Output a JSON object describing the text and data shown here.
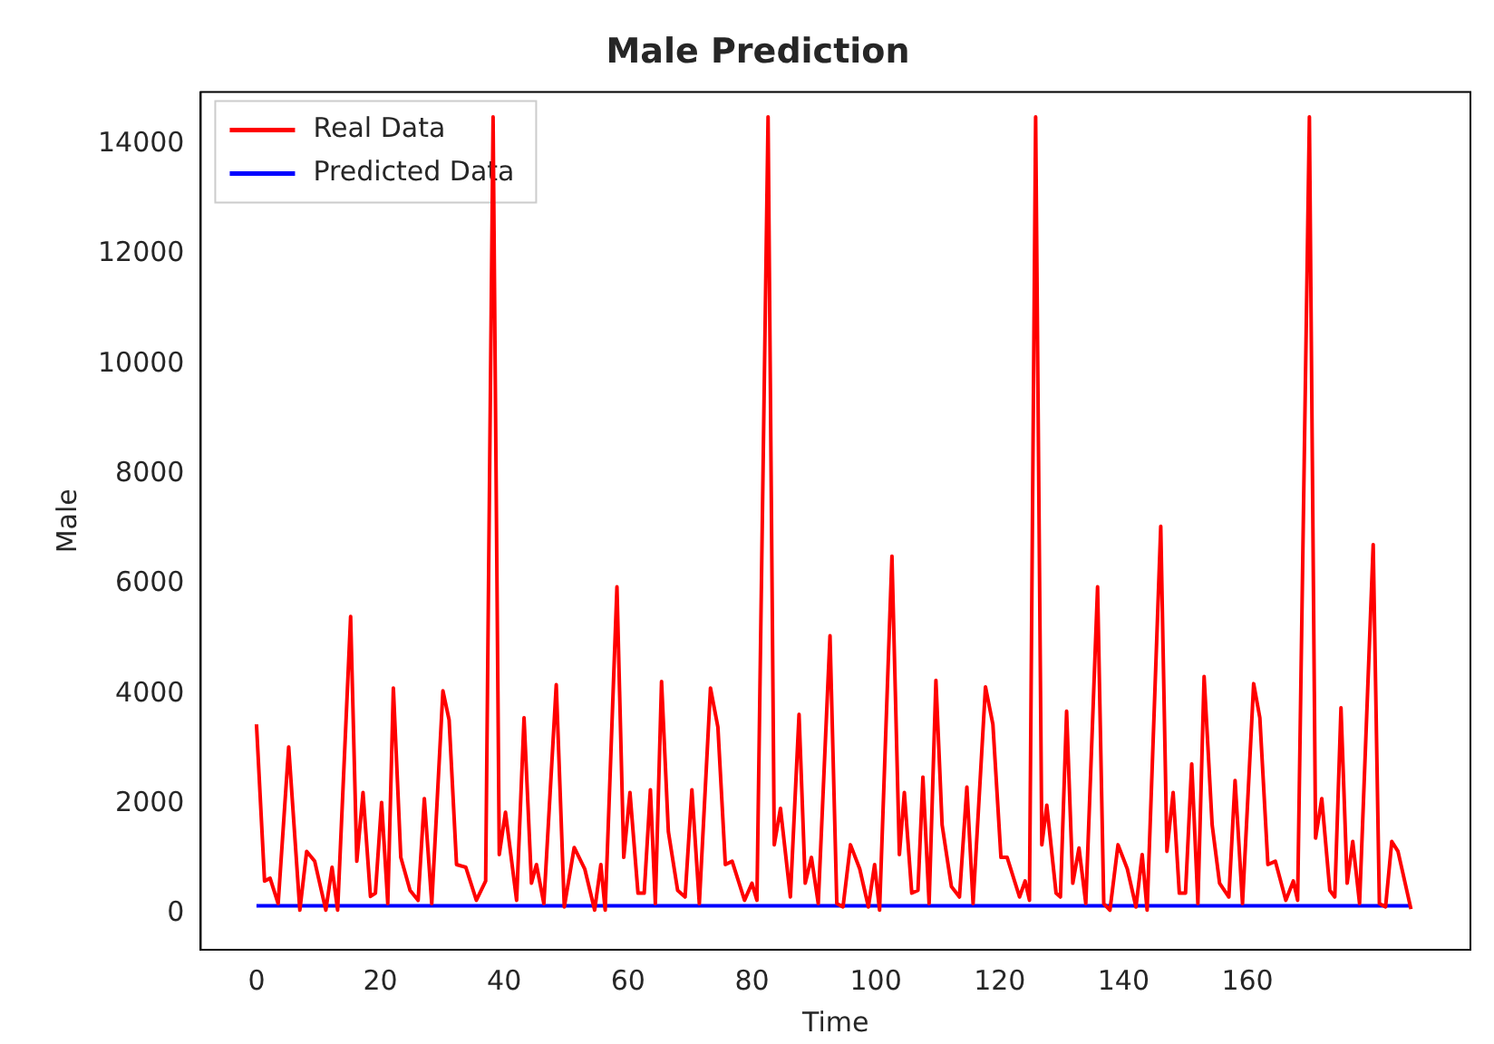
{
  "chart_data": {
    "type": "line",
    "title": "Male Prediction",
    "xlabel": "Time",
    "ylabel": "Male",
    "xlim": [
      -9,
      196
    ],
    "ylim": [
      -650,
      14950
    ],
    "xticks": [
      0,
      20,
      40,
      60,
      80,
      100,
      120,
      140,
      160
    ],
    "yticks": [
      0,
      2000,
      4000,
      6000,
      8000,
      10000,
      12000,
      14000
    ],
    "grid": false,
    "legend": "top left",
    "marker": "none",
    "line_style": "solid",
    "series": [
      {
        "name": "Real Data",
        "color": "#ff0000",
        "x": [
          0,
          1.3,
          2.2,
          3.5,
          5.2,
          7,
          8.1,
          9.4,
          11.2,
          12.2,
          13.1,
          15.2,
          16.2,
          17.2,
          18.4,
          19.2,
          20.2,
          21.2,
          22.1,
          23.3,
          24.8,
          26.1,
          27.1,
          28.3,
          30.1,
          31.1,
          32.3,
          33.8,
          35.5,
          37,
          38.2,
          39.2,
          40.2,
          42,
          43.2,
          44.4,
          45.2,
          46.4,
          48.4,
          49.7,
          51.3,
          53,
          54.6,
          55.6,
          56.3,
          58.2,
          59.3,
          60.3,
          61.6,
          62.6,
          63.6,
          64.4,
          65.4,
          66.5,
          68,
          69.2,
          70.3,
          71.5,
          73.3,
          74.5,
          75.7,
          76.8,
          78.8,
          80,
          80.8,
          82.6,
          83.6,
          84.6,
          86.2,
          87.6,
          88.6,
          89.6,
          90.7,
          92.6,
          93.7,
          94.7,
          95.9,
          97.4,
          98.8,
          99.8,
          100.6,
          102.6,
          103.8,
          104.6,
          105.8,
          106.8,
          107.6,
          108.6,
          109.7,
          110.7,
          112.2,
          113.5,
          114.7,
          115.7,
          117.7,
          118.9,
          120.2,
          121.2,
          123.2,
          124.1,
          124.8,
          125.8,
          126.8,
          127.6,
          129.1,
          129.8,
          130.8,
          131.8,
          132.8,
          133.9,
          135.8,
          136.8,
          137.8,
          139.1,
          140.6,
          142,
          143,
          143.8,
          146,
          147,
          148,
          149,
          150,
          151,
          152,
          153,
          154.3,
          155.5,
          157,
          158,
          159.2,
          161,
          162,
          163.3,
          164.5,
          166.2,
          167.4,
          168.1,
          170,
          171,
          172,
          173.3,
          174.1,
          175.1,
          176.1,
          177,
          178.1,
          180.3,
          181.3,
          182.3,
          183.3,
          184.3,
          186.4
        ],
        "values": [
          3450,
          600,
          650,
          190,
          3040,
          70,
          1140,
          960,
          70,
          850,
          70,
          5410,
          960,
          2210,
          320,
          380,
          2030,
          190,
          4110,
          1030,
          430,
          250,
          2100,
          190,
          4060,
          3530,
          900,
          850,
          250,
          600,
          14500,
          1080,
          1850,
          250,
          3570,
          560,
          900,
          190,
          4170,
          130,
          1210,
          820,
          70,
          900,
          70,
          5950,
          1030,
          2210,
          380,
          380,
          2260,
          190,
          4230,
          1500,
          430,
          310,
          2260,
          190,
          4110,
          3400,
          900,
          960,
          250,
          560,
          250,
          14500,
          1260,
          1920,
          310,
          3630,
          560,
          1030,
          190,
          5060,
          190,
          130,
          1260,
          820,
          130,
          900,
          70,
          6510,
          1080,
          2210,
          380,
          430,
          2490,
          190,
          4250,
          1620,
          500,
          310,
          2310,
          190,
          4130,
          3450,
          1030,
          1030,
          310,
          600,
          250,
          14500,
          1260,
          1980,
          380,
          310,
          3690,
          560,
          1200,
          190,
          5950,
          190,
          70,
          1260,
          820,
          130,
          1080,
          70,
          7050,
          1140,
          2210,
          380,
          380,
          2730,
          190,
          4320,
          1620,
          560,
          310,
          2430,
          190,
          4190,
          3570,
          900,
          960,
          250,
          600,
          250,
          14500,
          1380,
          2100,
          430,
          310,
          3750,
          560,
          1320,
          190,
          6720,
          190,
          130,
          1320,
          1140,
          90
        ]
      },
      {
        "name": "Predicted Data",
        "color": "#0000ff",
        "x": [
          0,
          186.4
        ],
        "values": [
          150,
          150
        ]
      }
    ]
  }
}
